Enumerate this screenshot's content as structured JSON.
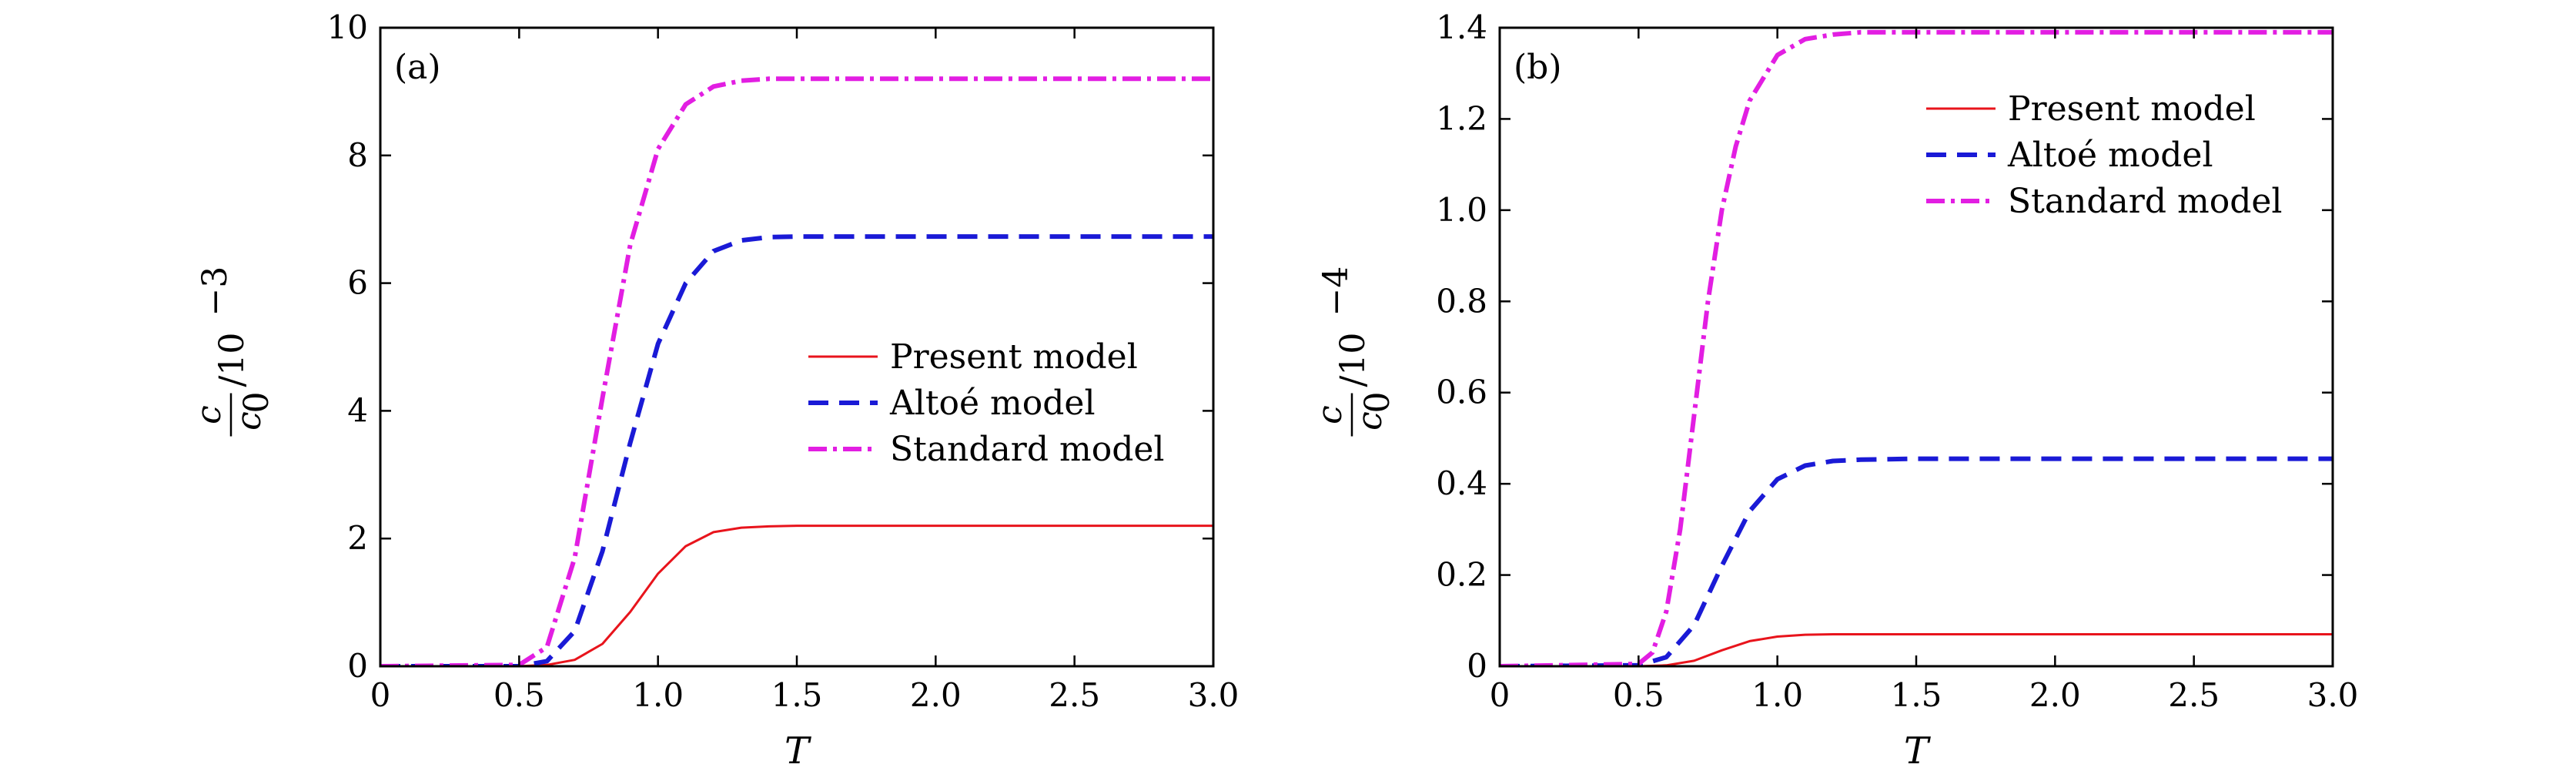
{
  "chart_data": [
    {
      "type": "line",
      "panel_label": "(a)",
      "xlabel": "T",
      "ylabel": {
        "num": "c",
        "den": "c",
        "den_sub": "0",
        "suffix": "/10",
        "exp": "−3"
      },
      "xlim": [
        0,
        3.0
      ],
      "ylim": [
        0,
        10
      ],
      "xticks": [
        0,
        0.5,
        1.0,
        1.5,
        2.0,
        2.5,
        3.0
      ],
      "xtick_labels": [
        "0",
        "0.5",
        "1.0",
        "1.5",
        "2.0",
        "2.5",
        "3.0"
      ],
      "yticks": [
        0,
        2,
        4,
        6,
        8,
        10
      ],
      "ytick_labels": [
        "0",
        "2",
        "4",
        "6",
        "8",
        "10"
      ],
      "grid": false,
      "legend_position": "center-right",
      "series": [
        {
          "name": "Present model",
          "color": "#e8141c",
          "dash": "solid",
          "x": [
            0,
            0.5,
            0.6,
            0.7,
            0.8,
            0.9,
            1.0,
            1.1,
            1.2,
            1.3,
            1.4,
            1.5,
            2.0,
            2.5,
            3.0
          ],
          "y": [
            0,
            0,
            0.02,
            0.1,
            0.35,
            0.85,
            1.45,
            1.88,
            2.1,
            2.17,
            2.19,
            2.2,
            2.2,
            2.2,
            2.2
          ]
        },
        {
          "name": "Altoé model",
          "color": "#1a1ad6",
          "dash": "dashed",
          "x": [
            0,
            0.5,
            0.6,
            0.7,
            0.8,
            0.9,
            1.0,
            1.1,
            1.2,
            1.3,
            1.4,
            1.5,
            2.0,
            2.5,
            3.0
          ],
          "y": [
            0,
            0,
            0.08,
            0.55,
            1.8,
            3.5,
            5.05,
            6.0,
            6.5,
            6.67,
            6.72,
            6.73,
            6.73,
            6.73,
            6.73
          ]
        },
        {
          "name": "Standard model",
          "color": "#e21ee2",
          "dash": "dashdot",
          "x": [
            0,
            0.5,
            0.6,
            0.7,
            0.8,
            0.9,
            1.0,
            1.1,
            1.2,
            1.3,
            1.4,
            1.5,
            2.0,
            2.5,
            3.0
          ],
          "y": [
            0,
            0.02,
            0.3,
            1.7,
            4.2,
            6.6,
            8.1,
            8.8,
            9.08,
            9.17,
            9.2,
            9.2,
            9.2,
            9.2,
            9.2
          ]
        }
      ]
    },
    {
      "type": "line",
      "panel_label": "(b)",
      "xlabel": "T",
      "ylabel": {
        "num": "c",
        "den": "c",
        "den_sub": "0",
        "suffix": "/10",
        "exp": "−4"
      },
      "xlim": [
        0,
        3.0
      ],
      "ylim": [
        0,
        1.4
      ],
      "xticks": [
        0,
        0.5,
        1.0,
        1.5,
        2.0,
        2.5,
        3.0
      ],
      "xtick_labels": [
        "0",
        "0.5",
        "1.0",
        "1.5",
        "2.0",
        "2.5",
        "3.0"
      ],
      "yticks": [
        0,
        0.2,
        0.4,
        0.6,
        0.8,
        1.0,
        1.2,
        1.4
      ],
      "ytick_labels": [
        "0",
        "0.2",
        "0.4",
        "0.6",
        "0.8",
        "1.0",
        "1.2",
        "1.4"
      ],
      "grid": false,
      "legend_position": "top-right",
      "series": [
        {
          "name": "Present model",
          "color": "#e8141c",
          "dash": "solid",
          "x": [
            0,
            0.5,
            0.6,
            0.7,
            0.8,
            0.9,
            1.0,
            1.1,
            1.2,
            1.3,
            1.5,
            2.0,
            2.5,
            3.0
          ],
          "y": [
            0,
            0,
            0.002,
            0.012,
            0.035,
            0.055,
            0.065,
            0.069,
            0.07,
            0.07,
            0.07,
            0.07,
            0.07,
            0.07
          ]
        },
        {
          "name": "Altoé model",
          "color": "#1a1ad6",
          "dash": "dashed",
          "x": [
            0,
            0.5,
            0.6,
            0.7,
            0.8,
            0.9,
            1.0,
            1.1,
            1.2,
            1.3,
            1.5,
            2.0,
            2.5,
            3.0
          ],
          "y": [
            0,
            0.002,
            0.02,
            0.09,
            0.22,
            0.34,
            0.41,
            0.44,
            0.45,
            0.453,
            0.455,
            0.455,
            0.455,
            0.455
          ]
        },
        {
          "name": "Standard model",
          "color": "#e21ee2",
          "dash": "dashdot",
          "x": [
            0,
            0.5,
            0.55,
            0.6,
            0.65,
            0.7,
            0.75,
            0.8,
            0.85,
            0.9,
            1.0,
            1.1,
            1.2,
            1.3,
            1.5,
            2.0,
            2.5,
            3.0
          ],
          "y": [
            0,
            0.005,
            0.03,
            0.12,
            0.3,
            0.55,
            0.8,
            1.0,
            1.14,
            1.24,
            1.34,
            1.375,
            1.385,
            1.39,
            1.39,
            1.39,
            1.39,
            1.39
          ]
        }
      ]
    }
  ]
}
